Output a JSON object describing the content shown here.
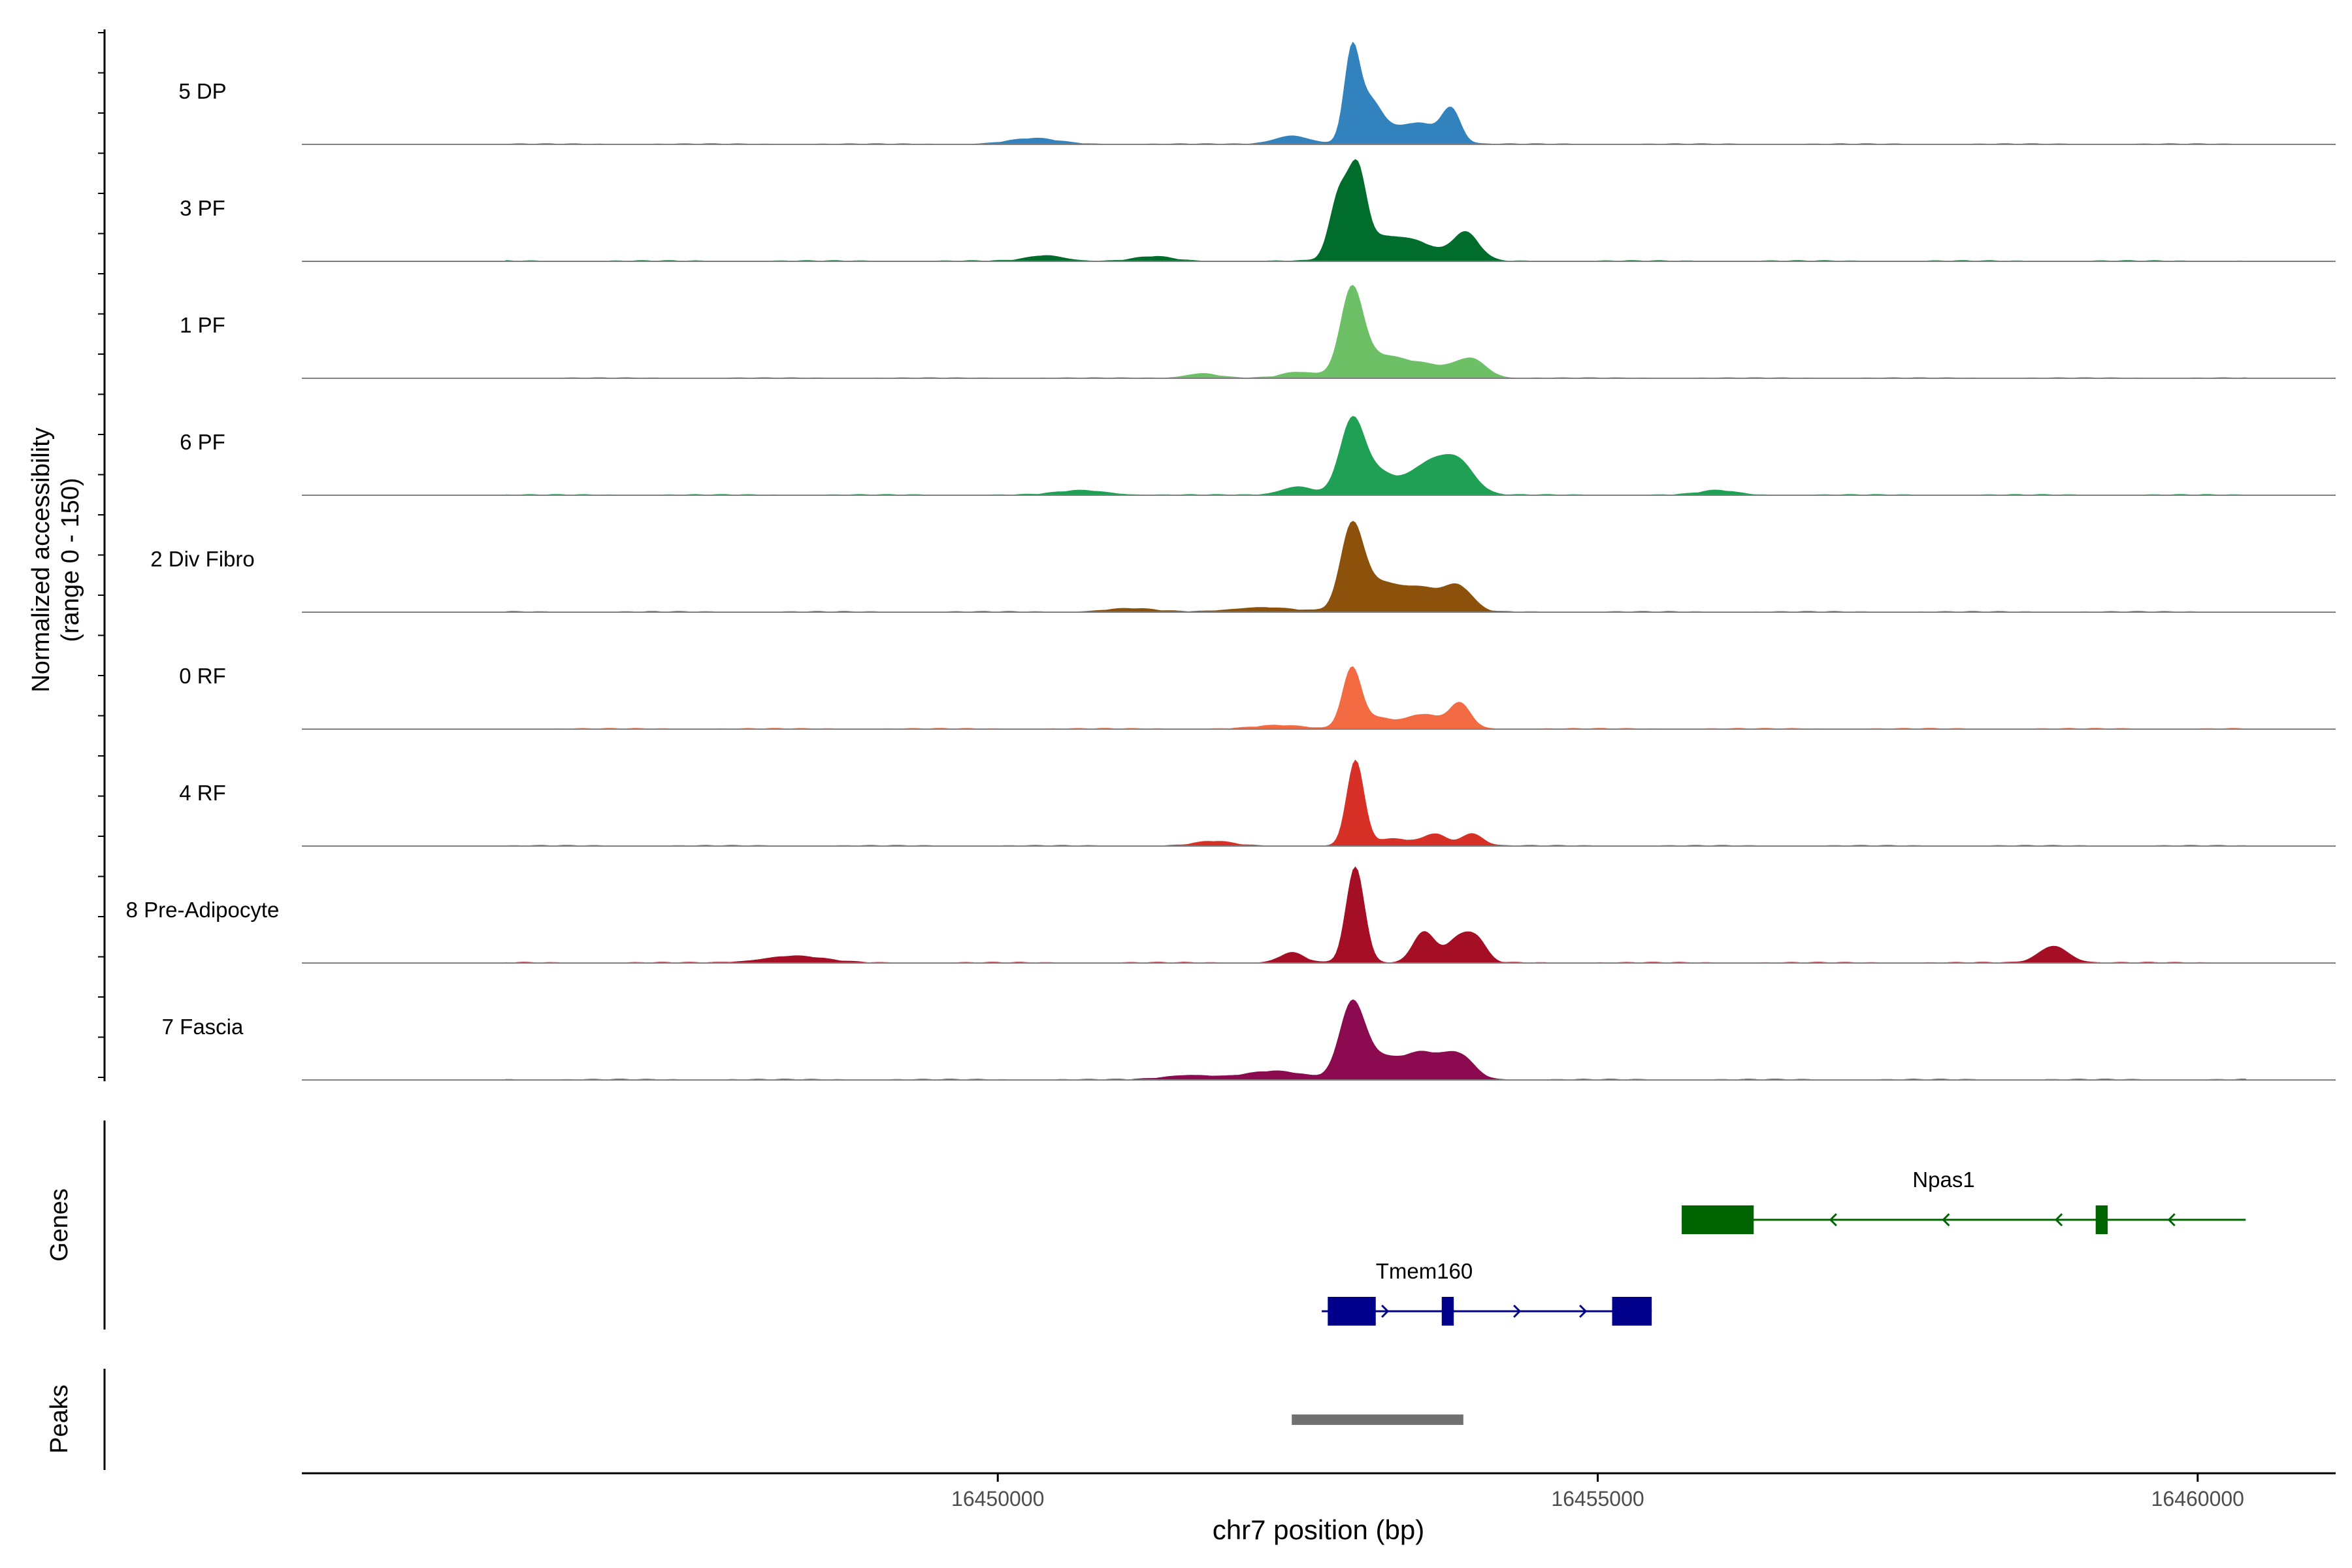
{
  "chart_data": {
    "type": "area",
    "ylabel_line1": "Normalized accessibility",
    "ylabel_line2": "(range 0 - 150)",
    "y_range": [
      0,
      150
    ],
    "xlabel": "chr7 position (bp)",
    "xlim": [
      16444200,
      16461150
    ],
    "x_ticks": [
      16450000,
      16455000,
      16460000
    ],
    "x_tick_labels": [
      "16450000",
      "16455000",
      "16460000"
    ],
    "track_start": 16445900,
    "track_end": 16460400,
    "tracks": [
      {
        "name": "5 DP",
        "color": "#3182bd",
        "peaks": [
          [
            16452950,
            134,
            60
          ],
          [
            16453080,
            80,
            120
          ],
          [
            16453500,
            38,
            180
          ],
          [
            16453780,
            55,
            75
          ],
          [
            16452450,
            15,
            140
          ],
          [
            16450300,
            10,
            200
          ]
        ]
      },
      {
        "name": "3 PF",
        "color": "#006d2c",
        "peaks": [
          [
            16452850,
            110,
            80
          ],
          [
            16453000,
            128,
            70
          ],
          [
            16453150,
            40,
            200
          ],
          [
            16453500,
            28,
            170
          ],
          [
            16453900,
            50,
            110
          ],
          [
            16450400,
            10,
            150
          ],
          [
            16451300,
            8,
            150
          ]
        ]
      },
      {
        "name": "1 PF",
        "color": "#6dc066",
        "peaks": [
          [
            16452950,
            140,
            90
          ],
          [
            16453150,
            38,
            220
          ],
          [
            16453600,
            20,
            220
          ],
          [
            16453950,
            30,
            120
          ],
          [
            16452500,
            10,
            130
          ],
          [
            16451700,
            8,
            130
          ]
        ]
      },
      {
        "name": "6 PF",
        "color": "#1fa055",
        "peaks": [
          [
            16452950,
            120,
            100
          ],
          [
            16453150,
            40,
            160
          ],
          [
            16453600,
            55,
            160
          ],
          [
            16453850,
            50,
            130
          ],
          [
            16452500,
            15,
            130
          ],
          [
            16450700,
            8,
            200
          ],
          [
            16456000,
            8,
            150
          ]
        ]
      },
      {
        "name": "2 Div Fibro",
        "color": "#8c510a",
        "peaks": [
          [
            16452950,
            134,
            90
          ],
          [
            16453150,
            50,
            180
          ],
          [
            16453550,
            40,
            180
          ],
          [
            16453850,
            38,
            110
          ],
          [
            16452200,
            8,
            250
          ],
          [
            16451100,
            6,
            200
          ]
        ]
      },
      {
        "name": "0 RF",
        "color": "#f26b43",
        "peaks": [
          [
            16452950,
            102,
            75
          ],
          [
            16453150,
            20,
            160
          ],
          [
            16453550,
            25,
            130
          ],
          [
            16453850,
            45,
            90
          ],
          [
            16452350,
            6,
            200
          ]
        ]
      },
      {
        "name": "4 RF",
        "color": "#d73027",
        "peaks": [
          [
            16452980,
            150,
            70
          ],
          [
            16453300,
            12,
            180
          ],
          [
            16453650,
            20,
            90
          ],
          [
            16453950,
            22,
            90
          ],
          [
            16451800,
            8,
            150
          ]
        ]
      },
      {
        "name": "8 Pre-Adipocyte",
        "color": "#a50f25",
        "peaks": [
          [
            16452980,
            170,
            75
          ],
          [
            16453550,
            55,
            90
          ],
          [
            16453850,
            45,
            110
          ],
          [
            16454000,
            30,
            80
          ],
          [
            16452450,
            18,
            100
          ],
          [
            16458800,
            30,
            120
          ],
          [
            16448300,
            12,
            250
          ]
        ]
      },
      {
        "name": "7 Fascia",
        "color": "#8b0a50",
        "peaks": [
          [
            16452950,
            120,
            100
          ],
          [
            16453150,
            40,
            180
          ],
          [
            16453550,
            45,
            160
          ],
          [
            16453850,
            40,
            120
          ],
          [
            16452300,
            15,
            250
          ],
          [
            16451600,
            8,
            200
          ]
        ]
      }
    ],
    "genes_label": "Genes",
    "genes": [
      {
        "name": "Npas1",
        "strand": "-",
        "color": "#006400",
        "start": 16455700,
        "end": 16460400,
        "exons": [
          [
            16455700,
            16456300
          ],
          [
            16459150,
            16459250
          ]
        ]
      },
      {
        "name": "Tmem160",
        "strand": "+",
        "color": "#00008b",
        "start": 16452700,
        "end": 16455450,
        "exons": [
          [
            16452750,
            16453150
          ],
          [
            16453700,
            16453800
          ],
          [
            16455120,
            16455450
          ]
        ]
      }
    ],
    "peaks_label": "Peaks",
    "peak_regions": [
      [
        16452450,
        16453880
      ]
    ],
    "peak_color": "#707070"
  }
}
